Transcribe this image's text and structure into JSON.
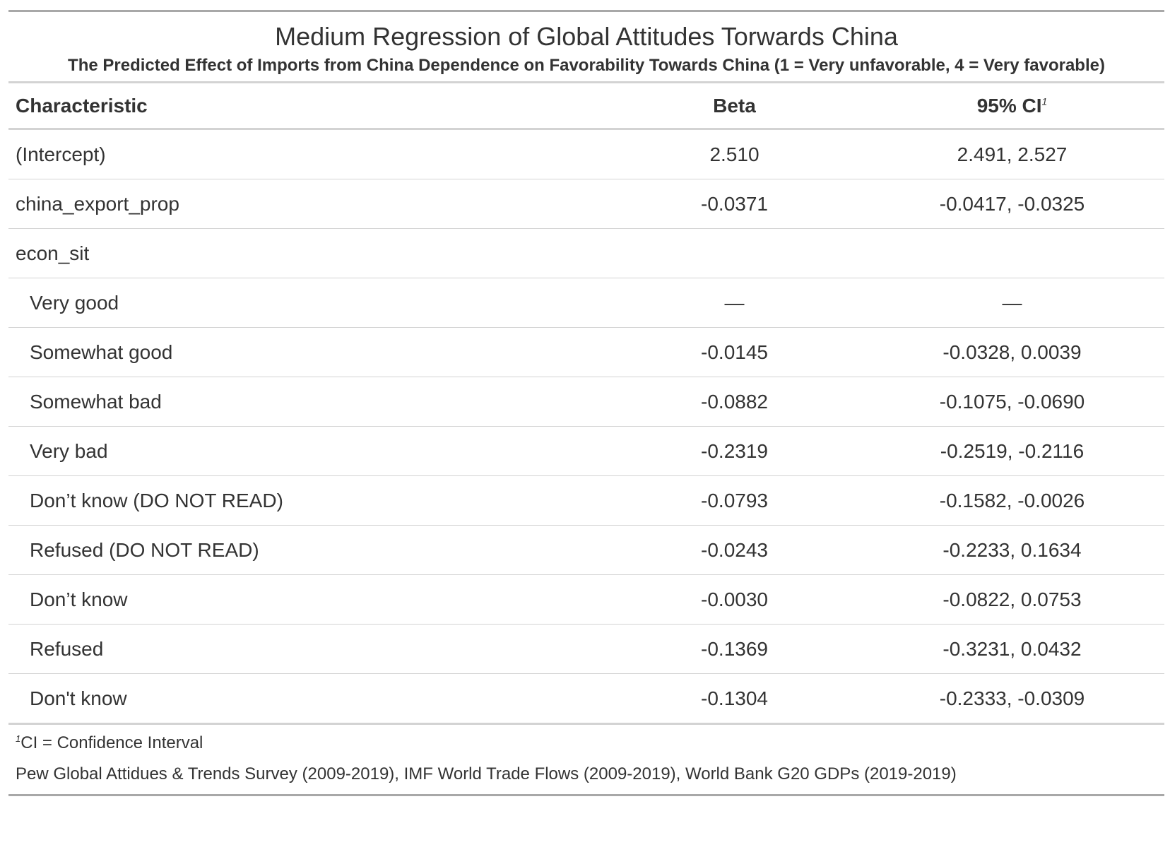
{
  "title": "Medium Regression of Global Attitudes Torwards China",
  "subtitle": "The Predicted Effect of Imports from China Dependence on Favorability Towards China (1 = Very unfavorable, 4 = Very favorable)",
  "columns": {
    "characteristic": "Characteristic",
    "beta": "Beta",
    "ci": "95% CI",
    "ci_footnote_mark": "1"
  },
  "rows": [
    {
      "label": "(Intercept)",
      "beta": "2.510",
      "ci": "2.491, 2.527",
      "indent": false
    },
    {
      "label": "china_export_prop",
      "beta": "-0.0371",
      "ci": "-0.0417, -0.0325",
      "indent": false
    },
    {
      "label": "econ_sit",
      "beta": "",
      "ci": "",
      "indent": false
    },
    {
      "label": "Very good",
      "beta": "—",
      "ci": "—",
      "indent": true
    },
    {
      "label": "Somewhat good",
      "beta": "-0.0145",
      "ci": "-0.0328, 0.0039",
      "indent": true
    },
    {
      "label": "Somewhat bad",
      "beta": "-0.0882",
      "ci": "-0.1075, -0.0690",
      "indent": true
    },
    {
      "label": "Very bad",
      "beta": "-0.2319",
      "ci": "-0.2519, -0.2116",
      "indent": true
    },
    {
      "label": "Don’t know (DO NOT READ)",
      "beta": "-0.0793",
      "ci": "-0.1582, -0.0026",
      "indent": true
    },
    {
      "label": "Refused (DO NOT READ)",
      "beta": "-0.0243",
      "ci": "-0.2233, 0.1634",
      "indent": true
    },
    {
      "label": "Don’t know",
      "beta": "-0.0030",
      "ci": "-0.0822, 0.0753",
      "indent": true
    },
    {
      "label": "Refused",
      "beta": "-0.1369",
      "ci": "-0.3231, 0.0432",
      "indent": true
    },
    {
      "label": "Don't know",
      "beta": "-0.1304",
      "ci": "-0.2333, -0.0309",
      "indent": true
    }
  ],
  "footnote": {
    "mark": "1",
    "text": "CI = Confidence Interval"
  },
  "source": "Pew Global Attidues & Trends Survey (2009-2019), IMF World Trade Flows (2009-2019), World Bank G20 GDPs (2019-2019)"
}
